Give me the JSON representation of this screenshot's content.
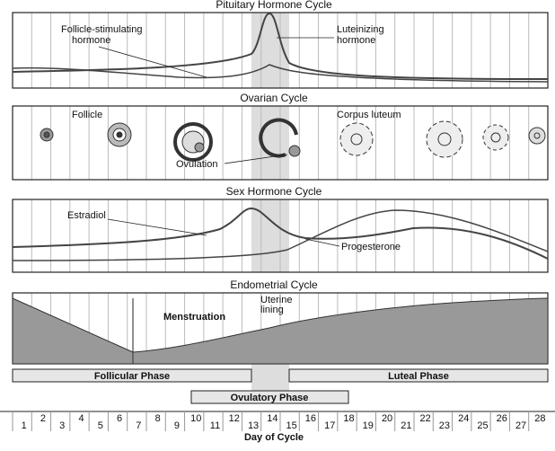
{
  "panels": [
    {
      "title": "Pituitary Hormone Cycle",
      "labels": [
        [
          "Follicle-stimulating",
          "hormone"
        ],
        [
          "Luteinizing",
          "hormone"
        ]
      ]
    },
    {
      "title": "Ovarian Cycle",
      "labels": [
        [
          "Follicle"
        ],
        [
          "Corpus luteum"
        ],
        [
          "Ovulation"
        ]
      ]
    },
    {
      "title": "Sex Hormone Cycle",
      "labels": [
        [
          "Estradiol"
        ],
        [
          "Progesterone"
        ]
      ]
    },
    {
      "title": "Endometrial Cycle",
      "labels": [
        [
          "Menstruation"
        ],
        [
          "Uterine",
          "lining"
        ]
      ]
    }
  ],
  "phases": [
    "Follicular Phase",
    "Luteal Phase",
    "Ovulatory Phase"
  ],
  "days": [
    1,
    2,
    3,
    4,
    5,
    6,
    7,
    8,
    9,
    10,
    11,
    12,
    13,
    14,
    15,
    16,
    17,
    18,
    19,
    20,
    21,
    22,
    23,
    24,
    25,
    26,
    27,
    28
  ],
  "axis_label": "Day of Cycle"
}
